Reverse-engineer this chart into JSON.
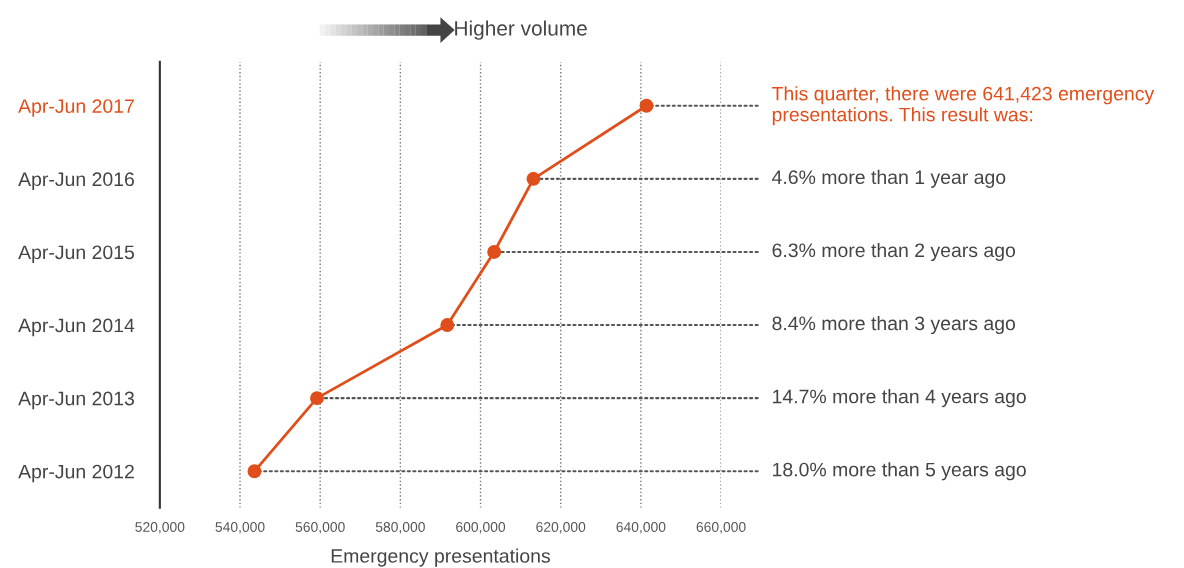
{
  "chart_data": {
    "type": "line",
    "orientation": "horizontal",
    "xlabel": "Emergency presentations",
    "categories": [
      "Apr-Jun 2017",
      "Apr-Jun 2016",
      "Apr-Jun 2015",
      "Apr-Jun 2014",
      "Apr-Jun 2013",
      "Apr-Jun 2012"
    ],
    "series": [
      {
        "color": "#e04e1b",
        "values": [
          641400,
          613200,
          603400,
          591700,
          559200,
          543600
        ]
      }
    ],
    "xlim": [
      520000,
      660000
    ],
    "xticks": [
      {
        "value": 520000,
        "label": "520,000"
      },
      {
        "value": 540000,
        "label": "540,000"
      },
      {
        "value": 560000,
        "label": "560,000"
      },
      {
        "value": 580000,
        "label": "580,000"
      },
      {
        "value": 600000,
        "label": "600,000"
      },
      {
        "value": 620000,
        "label": "620,000"
      },
      {
        "value": 640000,
        "label": "640,000"
      },
      {
        "value": 660000,
        "label": "660,000"
      }
    ],
    "grid": "x",
    "marker": "circle",
    "line_style": "solid",
    "annotations": [
      "Higher volume",
      {
        "text": "This quarter, there were 641,423 emergency presentations. This result was:",
        "x": 641400,
        "y": "Apr-Jun 2017"
      },
      {
        "text": "4.6% more than 1 year ago",
        "x": 613200,
        "y": "Apr-Jun 2016"
      },
      {
        "text": "6.3% more than 2 years ago",
        "x": 603400,
        "y": "Apr-Jun 2015"
      },
      {
        "text": "8.4% more than 3 years ago",
        "x": 591700,
        "y": "Apr-Jun 2014"
      },
      {
        "text": "14.7% more than 4 years ago",
        "x": 559200,
        "y": "Apr-Jun 2013"
      },
      {
        "text": "18.0% more than 5 years ago",
        "x": 543600,
        "y": "Apr-Jun 2012"
      }
    ]
  }
}
